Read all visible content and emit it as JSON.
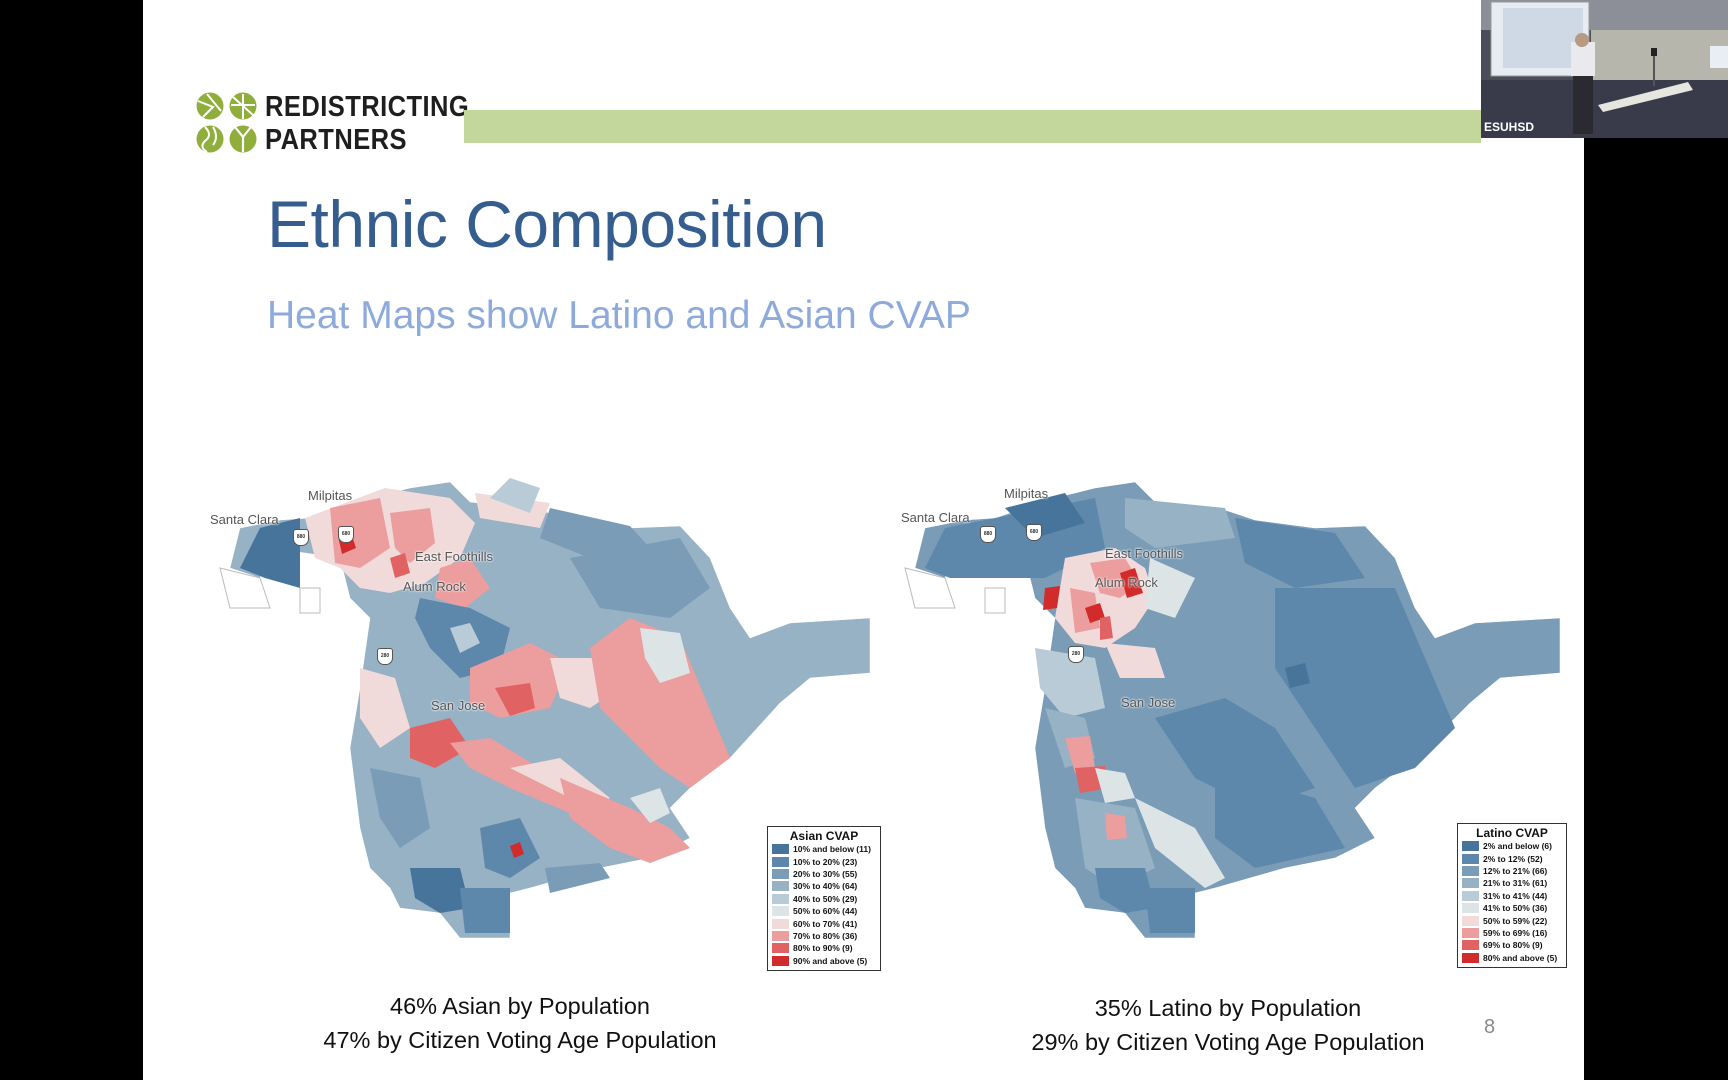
{
  "slide": {
    "brand": {
      "line1": "REDISTRICTING",
      "line2": "PARTNERS",
      "accent_color": "#8fae3c",
      "bar_color": "#c3d69b"
    },
    "title": "Ethnic Composition",
    "subtitle": "Heat Maps show Latino and Asian CVAP",
    "page_number": "8",
    "maps": [
      {
        "id": "asian",
        "place_labels": {
          "milpitas": "Milpitas",
          "santa_clara": "Santa Clara",
          "east_foothills": "East Foothills",
          "alum_rock": "Alum Rock",
          "san_jose": "San Jose"
        },
        "highway_shields": [
          "880",
          "680",
          "280"
        ],
        "legend": {
          "title": "Asian CVAP",
          "items": [
            {
              "label": "10% and below (11)",
              "color": "#47749a"
            },
            {
              "label": "10% to 20% (23)",
              "color": "#5d88ab"
            },
            {
              "label": "20% to 30% (55)",
              "color": "#7a9cb7"
            },
            {
              "label": "30% to 40% (64)",
              "color": "#97b1c5"
            },
            {
              "label": "40% to 50% (29)",
              "color": "#b9cbd7"
            },
            {
              "label": "50% to 60% (44)",
              "color": "#dde4e6"
            },
            {
              "label": "60% to 70% (41)",
              "color": "#f1dada"
            },
            {
              "label": "70% to 80% (36)",
              "color": "#ec9d9d"
            },
            {
              "label": "80% to 90% (9)",
              "color": "#e16262"
            },
            {
              "label": "90% and above (5)",
              "color": "#d22b2b"
            }
          ]
        },
        "caption": {
          "line1": "46% Asian by Population",
          "line2": "47% by Citizen Voting Age Population"
        }
      },
      {
        "id": "latino",
        "place_labels": {
          "milpitas": "Milpitas",
          "santa_clara": "Santa Clara",
          "east_foothills": "East Foothills",
          "alum_rock": "Alum Rock",
          "san_jose": "San Jose"
        },
        "highway_shields": [
          "880",
          "680",
          "280"
        ],
        "legend": {
          "title": "Latino CVAP",
          "items": [
            {
              "label": "2% and below (6)",
              "color": "#47749a"
            },
            {
              "label": "2% to 12% (52)",
              "color": "#5d88ab"
            },
            {
              "label": "12% to 21% (66)",
              "color": "#7a9cb7"
            },
            {
              "label": "21% to 31% (61)",
              "color": "#97b1c5"
            },
            {
              "label": "31% to 41% (44)",
              "color": "#b9cbd7"
            },
            {
              "label": "41% to 50% (36)",
              "color": "#dde4e6"
            },
            {
              "label": "50% to 59% (22)",
              "color": "#f1dada"
            },
            {
              "label": "59% to 69% (16)",
              "color": "#ec9d9d"
            },
            {
              "label": "69% to 80% (9)",
              "color": "#e16262"
            },
            {
              "label": "80% and above (5)",
              "color": "#d22b2b"
            }
          ]
        },
        "caption": {
          "line1": "35% Latino by Population",
          "line2": "29% by Citizen Voting Age Population"
        }
      }
    ]
  },
  "webcam": {
    "label": "ESUHSD"
  }
}
